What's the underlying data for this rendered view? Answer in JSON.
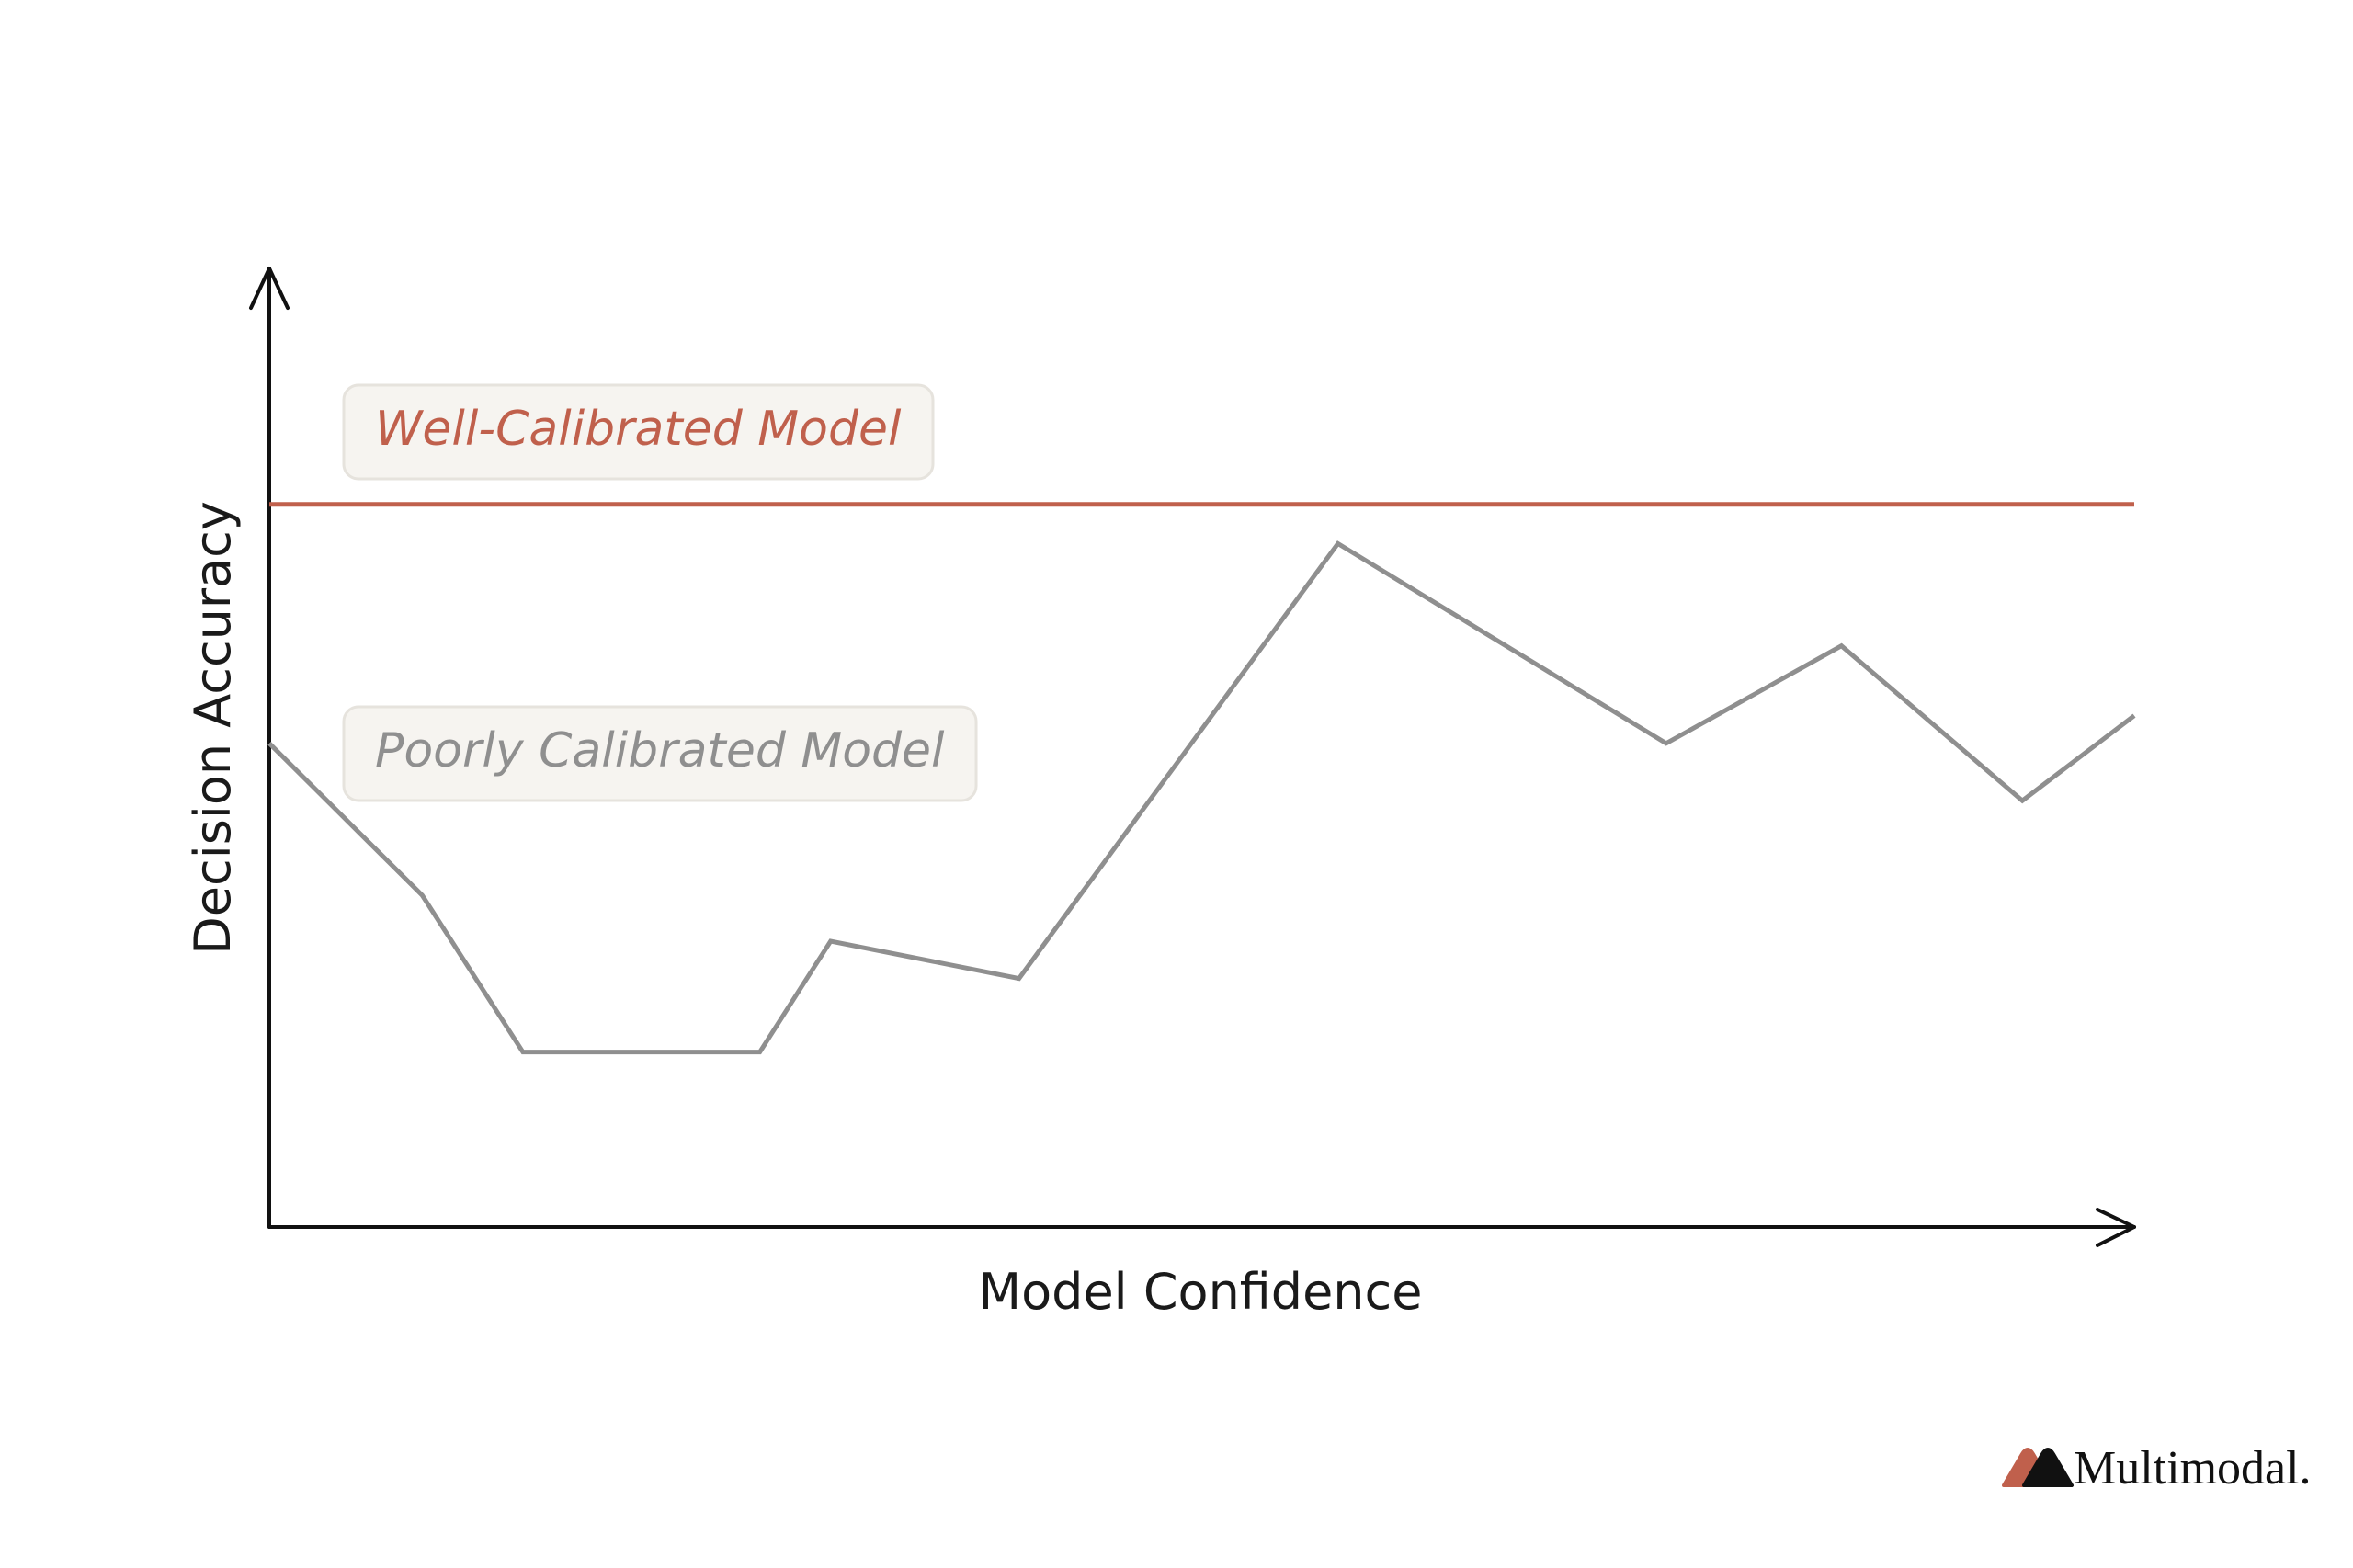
{
  "chart_data": {
    "type": "line",
    "xlabel": "Model Confidence",
    "ylabel": "Decision Accuracy",
    "xlim": [
      0,
      100
    ],
    "ylim": [
      0,
      100
    ],
    "series": [
      {
        "name": "Well-Calibrated Model",
        "color": "#c0604c",
        "x": [
          0,
          100
        ],
        "values": [
          75.6,
          75.6
        ]
      },
      {
        "name": "Poorly Calibrated Model",
        "color": "#8f8f8f",
        "x": [
          0,
          8.2,
          13.6,
          26.3,
          30.1,
          40.2,
          57.3,
          74.9,
          84.3,
          94.0,
          100
        ],
        "values": [
          50.6,
          34.7,
          18.3,
          18.3,
          29.9,
          26.0,
          71.5,
          50.6,
          60.8,
          44.6,
          53.5
        ]
      }
    ]
  },
  "brand": "Multimodal."
}
